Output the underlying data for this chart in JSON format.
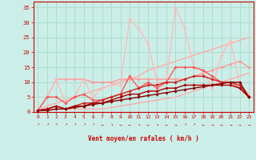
{
  "xlabel": "Vent moyen/en rafales ( km/h )",
  "bg_color": "#cceee8",
  "grid_color": "#aaddcc",
  "xlim": [
    -0.5,
    23.5
  ],
  "ylim": [
    0,
    37
  ],
  "xticks": [
    0,
    1,
    2,
    3,
    4,
    5,
    6,
    7,
    8,
    9,
    10,
    11,
    12,
    13,
    14,
    15,
    16,
    17,
    18,
    19,
    20,
    21,
    22,
    23
  ],
  "yticks": [
    0,
    5,
    10,
    15,
    20,
    25,
    30,
    35
  ],
  "lines": [
    {
      "x": [
        0,
        1,
        2,
        3,
        4,
        5,
        6,
        7,
        8,
        9,
        10,
        11,
        12,
        13,
        14,
        15,
        16,
        17,
        18,
        19,
        20,
        21,
        22,
        23
      ],
      "y": [
        0.5,
        1,
        1,
        1,
        1,
        1,
        1,
        1,
        1.5,
        2,
        2.5,
        3,
        3.5,
        4,
        4.5,
        5,
        6,
        7,
        8,
        9,
        10,
        11,
        12,
        13
      ],
      "color": "#ffaaaa",
      "linewidth": 1.0,
      "marker": null
    },
    {
      "x": [
        0,
        1,
        2,
        3,
        4,
        5,
        6,
        7,
        8,
        9,
        10,
        11,
        12,
        13,
        14,
        15,
        16,
        17,
        18,
        19,
        20,
        21,
        22,
        23
      ],
      "y": [
        0.5,
        2,
        3,
        4,
        5,
        6,
        7,
        8,
        9,
        10,
        11,
        12,
        14,
        15,
        16,
        17,
        18,
        19,
        20,
        21,
        22,
        23,
        24,
        25
      ],
      "color": "#ffaaaa",
      "linewidth": 1.0,
      "marker": null
    },
    {
      "x": [
        0,
        1,
        2,
        3,
        4,
        5,
        6,
        7,
        8,
        9,
        10,
        11,
        12,
        13,
        14,
        15,
        16,
        17,
        18,
        19,
        20,
        21,
        22,
        23
      ],
      "y": [
        0.5,
        5,
        11,
        11,
        11,
        11,
        10,
        10,
        10,
        11,
        11,
        11,
        11,
        11,
        11,
        11,
        11,
        12,
        13,
        14,
        15,
        16,
        17,
        15
      ],
      "color": "#ff9999",
      "linewidth": 1.0,
      "marker": "D",
      "markersize": 1.8
    },
    {
      "x": [
        0,
        1,
        2,
        3,
        4,
        5,
        6,
        7,
        8,
        9,
        10,
        11,
        12,
        13,
        14,
        15,
        16,
        17,
        18,
        19,
        20,
        21,
        22,
        23
      ],
      "y": [
        0.5,
        5,
        11,
        3,
        5,
        11,
        5,
        8,
        9,
        9,
        31,
        28,
        23,
        10,
        10,
        35,
        28,
        15,
        14,
        8,
        19,
        24,
        9,
        6
      ],
      "color": "#ffbbbb",
      "linewidth": 1.0,
      "marker": "D",
      "markersize": 1.8
    },
    {
      "x": [
        0,
        1,
        2,
        3,
        4,
        5,
        6,
        7,
        8,
        9,
        10,
        11,
        12,
        13,
        14,
        15,
        16,
        17,
        18,
        19,
        20,
        21,
        22,
        23
      ],
      "y": [
        0.5,
        5,
        5,
        3,
        5,
        6,
        4,
        4,
        5,
        6,
        12,
        8,
        10,
        8,
        10,
        15,
        15,
        15,
        14,
        12,
        10,
        10,
        8,
        5
      ],
      "color": "#ff5555",
      "linewidth": 1.0,
      "marker": "D",
      "markersize": 1.8
    },
    {
      "x": [
        0,
        1,
        2,
        3,
        4,
        5,
        6,
        7,
        8,
        9,
        10,
        11,
        12,
        13,
        14,
        15,
        16,
        17,
        18,
        19,
        20,
        21,
        22,
        23
      ],
      "y": [
        0.5,
        1,
        2,
        1,
        2,
        3,
        3,
        4,
        5,
        6,
        7,
        8,
        9,
        9,
        10,
        10,
        11,
        12,
        12,
        11,
        10,
        10,
        9,
        5
      ],
      "color": "#cc2222",
      "linewidth": 1.0,
      "marker": "D",
      "markersize": 1.8
    },
    {
      "x": [
        0,
        1,
        2,
        3,
        4,
        5,
        6,
        7,
        8,
        9,
        10,
        11,
        12,
        13,
        14,
        15,
        16,
        17,
        18,
        19,
        20,
        21,
        22,
        23
      ],
      "y": [
        0.5,
        1,
        2,
        1,
        2,
        2,
        3,
        3,
        4,
        5,
        6,
        6,
        7,
        7,
        8,
        8,
        9,
        9,
        9,
        9,
        9,
        9,
        8,
        5
      ],
      "color": "#aa0000",
      "linewidth": 1.0,
      "marker": "D",
      "markersize": 1.8
    },
    {
      "x": [
        0,
        1,
        2,
        3,
        4,
        5,
        6,
        7,
        8,
        9,
        10,
        11,
        12,
        13,
        14,
        15,
        16,
        17,
        18,
        19,
        20,
        21,
        22,
        23
      ],
      "y": [
        0.5,
        0.5,
        1,
        1,
        1.5,
        2,
        2.5,
        3,
        3.5,
        4,
        4.5,
        5,
        5.5,
        6,
        6.5,
        7,
        7.5,
        8,
        8.5,
        9,
        9.5,
        10,
        10,
        5
      ],
      "color": "#880000",
      "linewidth": 1.0,
      "marker": "D",
      "markersize": 1.8
    }
  ],
  "arrows": [
    "↗",
    "↗",
    "↗",
    "↗",
    "↗",
    "↗",
    "↗",
    "→",
    "↘",
    "→",
    "→",
    "↘",
    "→",
    "↘",
    "→",
    "→",
    "↗",
    "↗",
    "→",
    "→",
    "→",
    "→",
    "→",
    "→"
  ]
}
